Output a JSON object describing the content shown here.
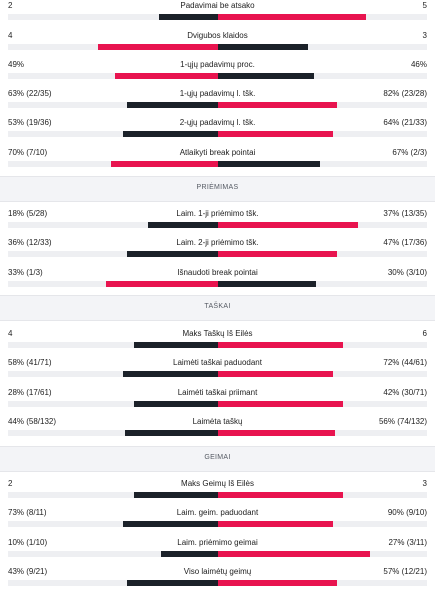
{
  "colors": {
    "winner": "#e8144f",
    "loser": "#1b2129",
    "track": "#eeeff2"
  },
  "sections": [
    {
      "header": "",
      "rows": [
        {
          "label": "Padavimai be atsako",
          "left": "2",
          "right": "5",
          "left_pct": 28,
          "right_pct": 71,
          "left_winner": false
        },
        {
          "label": "Dvigubos klaidos",
          "left": "4",
          "right": "3",
          "left_pct": 57,
          "right_pct": 43,
          "left_winner": true
        },
        {
          "label": "1-ųjų padavimų proc.",
          "left": "49%",
          "right": "46%",
          "left_pct": 49,
          "right_pct": 46,
          "left_winner": true
        },
        {
          "label": "1-ųjų padavimų l. tšk.",
          "left": "63% (22/35)",
          "right": "82% (23/28)",
          "left_pct": 43,
          "right_pct": 57,
          "left_winner": false
        },
        {
          "label": "2-ųjų padavimų l. tšk.",
          "left": "53% (19/36)",
          "right": "64% (21/33)",
          "left_pct": 45,
          "right_pct": 55,
          "left_winner": false
        },
        {
          "label": "Atlaikyti break pointai",
          "left": "70% (7/10)",
          "right": "67% (2/3)",
          "left_pct": 51,
          "right_pct": 49,
          "left_winner": true
        }
      ]
    },
    {
      "header": "PRIĖMIMAS",
      "rows": [
        {
          "label": "Laim. 1-ji priėmimo tšk.",
          "left": "18% (5/28)",
          "right": "37% (13/35)",
          "left_pct": 33,
          "right_pct": 67,
          "left_winner": false
        },
        {
          "label": "Laim. 2-ji priėmimo tšk.",
          "left": "36% (12/33)",
          "right": "47% (17/36)",
          "left_pct": 43,
          "right_pct": 57,
          "left_winner": false
        },
        {
          "label": "Išnaudoti break pointai",
          "left": "33% (1/3)",
          "right": "30% (3/10)",
          "left_pct": 53,
          "right_pct": 47,
          "left_winner": true
        }
      ]
    },
    {
      "header": "TAŠKAI",
      "rows": [
        {
          "label": "Maks Taškų Iš Eilės",
          "left": "4",
          "right": "6",
          "left_pct": 40,
          "right_pct": 60,
          "left_winner": false
        },
        {
          "label": "Laimėti taškai paduodant",
          "left": "58% (41/71)",
          "right": "72% (44/61)",
          "left_pct": 45,
          "right_pct": 55,
          "left_winner": false
        },
        {
          "label": "Laimėti taškai priimant",
          "left": "28% (17/61)",
          "right": "42% (30/71)",
          "left_pct": 40,
          "right_pct": 60,
          "left_winner": false
        },
        {
          "label": "Laimėta taškų",
          "left": "44% (58/132)",
          "right": "56% (74/132)",
          "left_pct": 44,
          "right_pct": 56,
          "left_winner": false
        }
      ]
    },
    {
      "header": "GEIMAI",
      "rows": [
        {
          "label": "Maks Geimų Iš Eilės",
          "left": "2",
          "right": "3",
          "left_pct": 40,
          "right_pct": 60,
          "left_winner": false
        },
        {
          "label": "Laim. geim. paduodant",
          "left": "73% (8/11)",
          "right": "90% (9/10)",
          "left_pct": 45,
          "right_pct": 55,
          "left_winner": false
        },
        {
          "label": "Laim. priėmimo geimai",
          "left": "10% (1/10)",
          "right": "27% (3/11)",
          "left_pct": 27,
          "right_pct": 73,
          "left_winner": false
        },
        {
          "label": "Viso laimėtų geimų",
          "left": "43% (9/21)",
          "right": "57% (12/21)",
          "left_pct": 43,
          "right_pct": 57,
          "left_winner": false
        }
      ]
    }
  ]
}
